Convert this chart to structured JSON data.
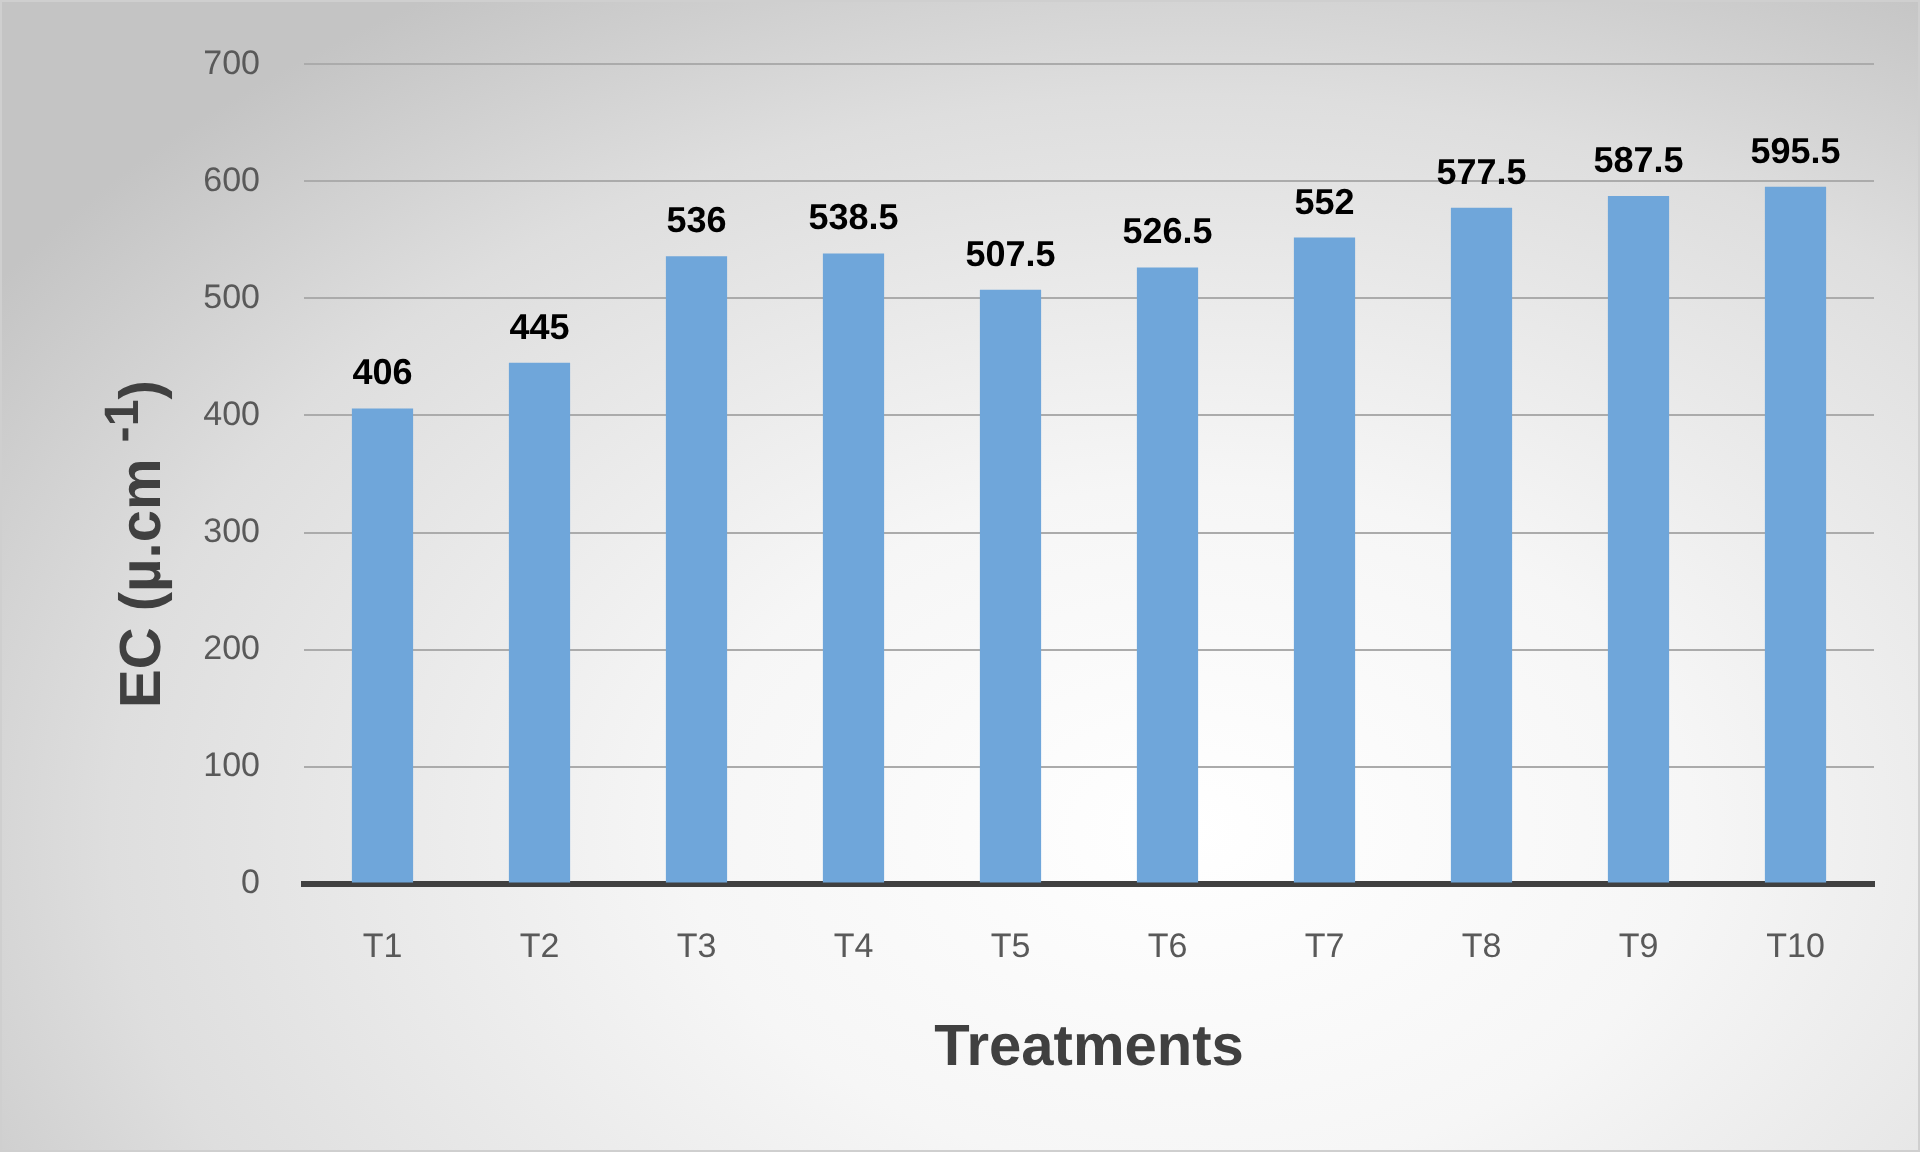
{
  "chart_data": {
    "type": "bar",
    "xlabel": "Treatments",
    "ylabel": "EC (µ.cm $^{-1}$)",
    "categories": [
      "T1",
      "T2",
      "T3",
      "T4",
      "T5",
      "T6",
      "T7",
      "T8",
      "T9",
      "T10"
    ],
    "values": [
      406,
      445,
      536,
      538.5,
      507.5,
      526.5,
      552,
      577.5,
      587.5,
      595.5
    ],
    "color": "#6fa6da",
    "ylim": [
      0,
      700
    ],
    "yticks": [
      0,
      100,
      200,
      300,
      400,
      500,
      600,
      700
    ],
    "grid": "y",
    "data_labels": true
  }
}
